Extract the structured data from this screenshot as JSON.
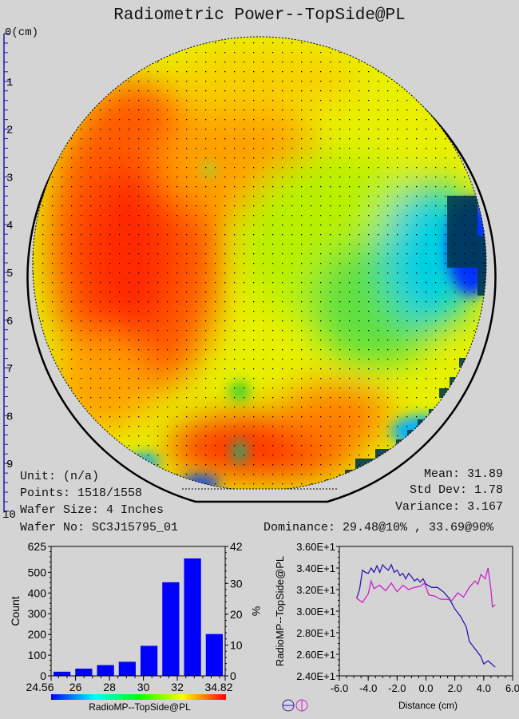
{
  "title": "Radiometric Power--TopSide@PL",
  "ruler": {
    "unit_label": "0(cm)",
    "labels": [
      "1",
      "2",
      "3",
      "4",
      "5",
      "6",
      "7",
      "8",
      "9",
      "10"
    ]
  },
  "info_left": {
    "unit": "Unit: (n/a)",
    "points": "Points: 1518/1558",
    "wafer_size": "Wafer Size: 4 Inches",
    "wafer_no": "Wafer No: SC3J15795_01"
  },
  "info_right": {
    "mean": "Mean: 31.89",
    "std_dev": "Std Dev: 1.78",
    "variance": "Variance: 3.167",
    "dominance": "Dominance: 29.48@10% , 33.69@90%"
  },
  "colors": {
    "background": "#d4d4d4",
    "bar": "#0000ff",
    "line1": "#2a1ab0",
    "line2": "#cc22cc",
    "ruler": "#1a1ab0"
  },
  "chart_data": [
    {
      "type": "bar",
      "title": "",
      "xlabel": "RadioMP--TopSide@PL",
      "ylabel": "Count",
      "y2label": "%",
      "xlim": [
        24.56,
        34.82
      ],
      "ylim": [
        0,
        625
      ],
      "y2lim": [
        0,
        42
      ],
      "x_ticks": [
        "24.56",
        "26",
        "28",
        "30",
        "32",
        "34.82"
      ],
      "y_ticks": [
        "0",
        "100",
        "200",
        "300",
        "400",
        "500",
        "625"
      ],
      "y2_ticks": [
        "0",
        "10",
        "20",
        "30",
        "42"
      ],
      "bins": 8,
      "values": [
        20,
        35,
        52,
        68,
        145,
        452,
        567,
        202
      ]
    },
    {
      "type": "line",
      "xlabel": "Distance (cm)",
      "ylabel": "RadioMP--TopSide@PL",
      "xlim": [
        -6,
        6
      ],
      "ylim": [
        24,
        36
      ],
      "x_ticks": [
        "-6.0",
        "-4.0",
        "-2.0",
        "0.0",
        "2.0",
        "4.0",
        "6.0"
      ],
      "y_ticks": [
        "2.40E+1",
        "2.60E+1",
        "2.80E+1",
        "3.00E+1",
        "3.20E+1",
        "3.40E+1",
        "3.60E+1"
      ],
      "series": [
        {
          "name": "horizontal",
          "x": [
            -4.8,
            -4.6,
            -4.4,
            -4.2,
            -4.0,
            -3.8,
            -3.6,
            -3.4,
            -3.2,
            -3.0,
            -2.8,
            -2.6,
            -2.4,
            -2.2,
            -2.0,
            -1.8,
            -1.6,
            -1.4,
            -1.2,
            -1.0,
            -0.8,
            -0.6,
            -0.4,
            -0.2,
            0.0,
            0.4,
            0.8,
            1.2,
            1.6,
            2.0,
            2.4,
            2.8,
            3.0,
            3.4,
            3.8,
            4.0,
            4.3,
            4.8
          ],
          "y": [
            31.2,
            32.0,
            33.8,
            33.6,
            33.5,
            34.0,
            33.6,
            34.2,
            33.6,
            34.3,
            34.0,
            33.8,
            34.3,
            33.6,
            33.8,
            33.3,
            33.5,
            33.0,
            33.5,
            33.2,
            32.8,
            33.0,
            32.7,
            33.0,
            32.5,
            32.2,
            32.2,
            31.8,
            31.2,
            30.2,
            29.5,
            28.5,
            27.2,
            26.5,
            25.8,
            25.1,
            25.4,
            24.8
          ]
        },
        {
          "name": "vertical",
          "x": [
            -4.8,
            -4.4,
            -4.0,
            -3.8,
            -3.6,
            -3.2,
            -2.8,
            -2.4,
            -2.0,
            -1.6,
            -1.2,
            -0.8,
            -0.4,
            -0.1,
            0.2,
            0.6,
            1.0,
            1.4,
            1.8,
            2.2,
            2.6,
            3.0,
            3.4,
            3.6,
            3.8,
            4.1,
            4.3,
            4.5,
            4.6,
            4.8
          ],
          "y": [
            31.2,
            30.8,
            31.6,
            32.8,
            32.1,
            32.4,
            31.9,
            32.6,
            31.8,
            32.4,
            32.0,
            32.2,
            32.3,
            32.6,
            31.5,
            31.4,
            31.1,
            31.1,
            31.0,
            31.7,
            31.3,
            32.2,
            32.8,
            32.5,
            33.4,
            33.0,
            34.0,
            32.0,
            30.4,
            30.6
          ]
        }
      ]
    }
  ]
}
